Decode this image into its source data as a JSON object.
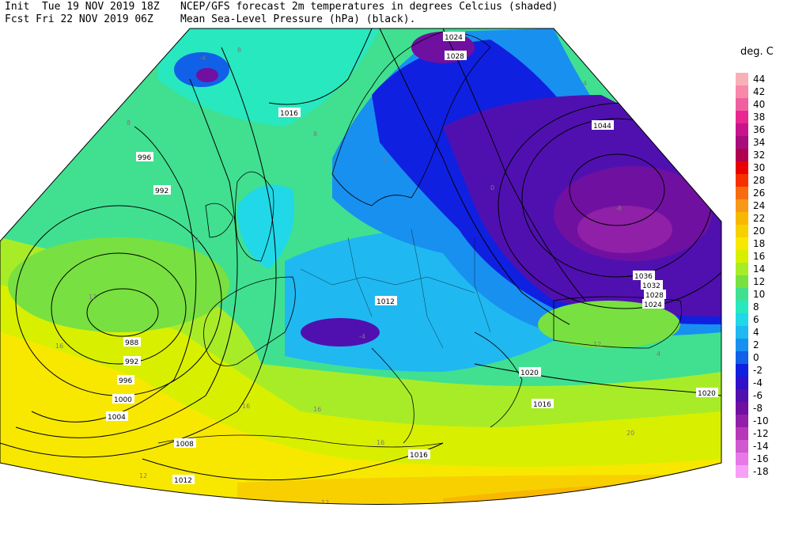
{
  "header": {
    "line1_left": "Init  Tue 19 NOV 2019 18Z",
    "line2_left": "Fcst Fri 22 NOV 2019 06Z",
    "line1_right": "NCEP/GFS forecast 2m temperatures in degrees Celcius (shaded)",
    "line2_right": "Mean Sea-Level Pressure (hPa) (black)."
  },
  "legend": {
    "unit": "deg. C",
    "items": [
      {
        "label": "44",
        "color": "#f8b0b8"
      },
      {
        "label": "42",
        "color": "#f888a8"
      },
      {
        "label": "40",
        "color": "#f060a0"
      },
      {
        "label": "38",
        "color": "#e82890"
      },
      {
        "label": "36",
        "color": "#c8148c"
      },
      {
        "label": "34",
        "color": "#a80c7c"
      },
      {
        "label": "32",
        "color": "#b00050"
      },
      {
        "label": "30",
        "color": "#e80000"
      },
      {
        "label": "28",
        "color": "#f83000"
      },
      {
        "label": "26",
        "color": "#f86c10"
      },
      {
        "label": "24",
        "color": "#f89818"
      },
      {
        "label": "22",
        "color": "#f8b800"
      },
      {
        "label": "20",
        "color": "#f8d000"
      },
      {
        "label": "18",
        "color": "#f8e800"
      },
      {
        "label": "16",
        "color": "#d8f000"
      },
      {
        "label": "14",
        "color": "#a8ec28"
      },
      {
        "label": "12",
        "color": "#78e040"
      },
      {
        "label": "10",
        "color": "#40e090"
      },
      {
        "label": "8",
        "color": "#28e8c0"
      },
      {
        "label": "6",
        "color": "#20d8e8"
      },
      {
        "label": "4",
        "color": "#20b8f0"
      },
      {
        "label": "2",
        "color": "#1890f0"
      },
      {
        "label": "0",
        "color": "#1060e8"
      },
      {
        "label": "-2",
        "color": "#1020e0"
      },
      {
        "label": "-4",
        "color": "#3010c8"
      },
      {
        "label": "-6",
        "color": "#5010b0"
      },
      {
        "label": "-8",
        "color": "#7010a0"
      },
      {
        "label": "-10",
        "color": "#9020a8"
      },
      {
        "label": "-12",
        "color": "#b838b8"
      },
      {
        "label": "-14",
        "color": "#d058d0"
      },
      {
        "label": "-16",
        "color": "#e878e8"
      },
      {
        "label": "-18",
        "color": "#f8a0f8"
      }
    ]
  },
  "isobar_labels": [
    "1024",
    "1028",
    "1016",
    "1044",
    "996",
    "992",
    "1036",
    "1032",
    "1028",
    "1024",
    "1012",
    "988",
    "992",
    "996",
    "1000",
    "1004",
    "1008",
    "1012",
    "1016",
    "1020",
    "1016",
    "1020"
  ],
  "temp_labels": [
    "-4",
    "8",
    "8",
    "8",
    "4",
    "8",
    "-8",
    "-4",
    "12",
    "16",
    "16",
    "16",
    "16",
    "12",
    "12",
    "12",
    "20",
    "20",
    "4",
    "0",
    "-4"
  ]
}
